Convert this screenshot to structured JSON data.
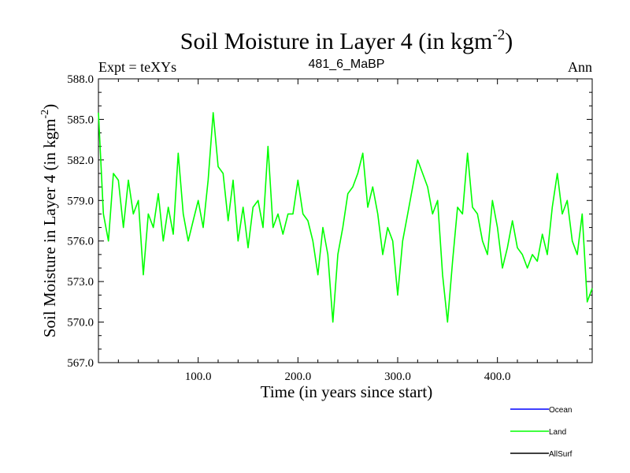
{
  "chart_data": {
    "type": "line",
    "title_main": "Soil Moisture in Layer 4 (in kgm",
    "title_sup": "-2",
    "title_close": ")",
    "subtitle_left": "Expt = teXYs",
    "subtitle_center": "481_6_MaBP",
    "subtitle_right": "Ann",
    "xlabel": "Time (in years since start)",
    "ylabel_main": "Soil Moisture in Layer 4 (in kgm",
    "ylabel_sup": "-2",
    "ylabel_close": ")",
    "xlim": [
      0,
      495
    ],
    "ylim": [
      567.0,
      588.0
    ],
    "x_ticks": [
      100,
      200,
      300,
      400
    ],
    "x_tick_labels": [
      "100.0",
      "200.0",
      "300.0",
      "400.0"
    ],
    "y_ticks": [
      567,
      570,
      573,
      576,
      579,
      582,
      585,
      588
    ],
    "y_tick_labels": [
      "567.0",
      "570.0",
      "573.0",
      "576.0",
      "579.0",
      "582.0",
      "585.0",
      "588.0"
    ],
    "grid": false,
    "legend_position": "bottom-right",
    "series": [
      {
        "name": "Ocean",
        "color": "#0000ff",
        "x": [],
        "y": []
      },
      {
        "name": "Land",
        "color": "#00ff00",
        "x": [
          0,
          5,
          10,
          15,
          20,
          25,
          30,
          35,
          40,
          45,
          50,
          55,
          60,
          65,
          70,
          75,
          80,
          85,
          90,
          95,
          100,
          105,
          110,
          115,
          120,
          125,
          130,
          135,
          140,
          145,
          150,
          155,
          160,
          165,
          170,
          175,
          180,
          185,
          190,
          195,
          200,
          205,
          210,
          215,
          220,
          225,
          230,
          235,
          240,
          245,
          250,
          255,
          260,
          265,
          270,
          275,
          280,
          285,
          290,
          295,
          300,
          305,
          310,
          315,
          320,
          325,
          330,
          335,
          340,
          345,
          350,
          355,
          360,
          365,
          370,
          375,
          380,
          385,
          390,
          395,
          400,
          405,
          410,
          415,
          420,
          425,
          430,
          435,
          440,
          445,
          450,
          455,
          460,
          465,
          470,
          475,
          480,
          485,
          490,
          495
        ],
        "y": [
          585.5,
          578.0,
          576.0,
          581.0,
          580.5,
          577.0,
          580.5,
          578.0,
          579.0,
          573.5,
          578.0,
          577.0,
          579.5,
          576.0,
          578.5,
          576.5,
          582.5,
          578.0,
          576.0,
          577.5,
          579.0,
          577.0,
          580.5,
          585.5,
          581.5,
          581.0,
          577.5,
          580.5,
          576.0,
          578.5,
          575.5,
          578.5,
          579.0,
          577.0,
          583.0,
          577.0,
          578.0,
          576.5,
          578.0,
          578.0,
          580.5,
          578.0,
          577.5,
          576.0,
          573.5,
          577.0,
          575.0,
          570.0,
          575.0,
          577.0,
          579.5,
          580.0,
          581.0,
          582.5,
          578.5,
          580.0,
          578.0,
          575.0,
          577.0,
          576.0,
          572.0,
          576.0,
          578.0,
          580.0,
          582.0,
          581.0,
          580.0,
          578.0,
          579.0,
          573.5,
          570.0,
          574.5,
          578.5,
          578.0,
          582.5,
          578.5,
          578.0,
          576.0,
          575.0,
          579.0,
          577.0,
          574.0,
          575.5,
          577.5,
          575.5,
          575.0,
          574.0,
          575.0,
          574.5,
          576.5,
          575.0,
          578.5,
          581.0,
          578.0,
          579.0,
          576.0,
          575.0,
          578.0,
          571.5,
          572.5
        ]
      },
      {
        "name": "AllSurf",
        "color": "#000000",
        "x": [],
        "y": []
      }
    ]
  }
}
